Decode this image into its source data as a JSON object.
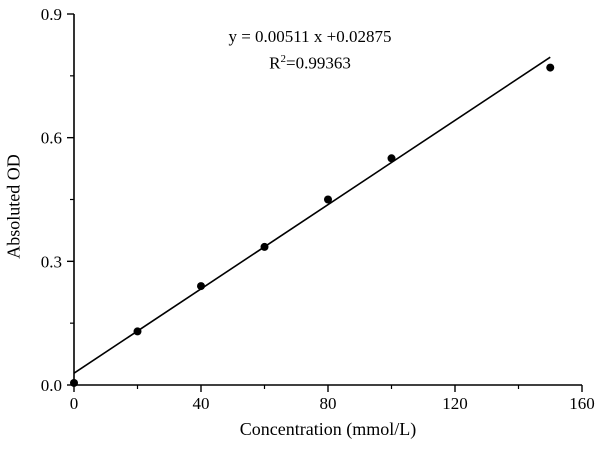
{
  "chart_data": {
    "type": "scatter",
    "title": "",
    "xlabel": "Concentration (mmol/L)",
    "ylabel": "Absoluted OD",
    "annotation": {
      "equation": "y = 0.00511 x +0.02875",
      "r_label": "R",
      "r_exponent": "2",
      "r_value": "=0.99363"
    },
    "points": {
      "x": [
        0,
        20,
        40,
        60,
        80,
        100,
        150
      ],
      "y": [
        0.005,
        0.13,
        0.24,
        0.335,
        0.45,
        0.55,
        0.77
      ]
    },
    "fit_line": {
      "slope": 0.00511,
      "intercept": 0.02875,
      "x_start": 0,
      "x_end": 150
    },
    "xlim": [
      0,
      160
    ],
    "ylim": [
      0,
      0.9
    ],
    "x_major_ticks": [
      0,
      40,
      80,
      120,
      160
    ],
    "x_tick_labels": [
      "0",
      "40",
      "80",
      "120",
      "160"
    ],
    "x_minor_ticks": [
      20,
      60,
      100,
      140
    ],
    "y_major_ticks": [
      0,
      0.3,
      0.6,
      0.9
    ],
    "y_tick_labels": [
      "0.0",
      "0.3",
      "0.6",
      "0.9"
    ],
    "y_minor_ticks": [
      0.15,
      0.45,
      0.75
    ],
    "grid": "off",
    "legend": "none",
    "colors": {
      "marker": "#000000",
      "line": "#000000",
      "axis": "#000000",
      "background": "#ffffff",
      "text": "#000000"
    }
  }
}
